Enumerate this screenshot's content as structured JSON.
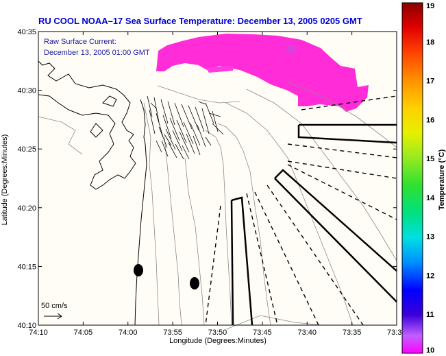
{
  "title": "RU COOL  NOAA–17  Sea Surface Temperature:  December 13, 2005 0205 GMT",
  "overlay": {
    "line1": "Raw Surface Current:",
    "line2": "December 13, 2005 01:00 GMT"
  },
  "axes": {
    "xlabel": "Longitude (Degrees:Minutes)",
    "ylabel": "Latitude (Degrees:Minutes)",
    "xticks": [
      "74:10",
      "74:05",
      "74:00",
      "73:55",
      "73:50",
      "73:45",
      "73:40",
      "73:35",
      "73:3"
    ],
    "yticks": [
      "40:35",
      "40:30",
      "40:25",
      "40:20",
      "40:15",
      "40:10"
    ]
  },
  "scale": {
    "label": "50 cm/s"
  },
  "colorbar": {
    "label": "Temperature (°C)",
    "ticks": [
      "19",
      "18",
      "17",
      "16",
      "15",
      "14",
      "13",
      "12",
      "11",
      "10"
    ],
    "min": 10,
    "max": 19
  }
}
